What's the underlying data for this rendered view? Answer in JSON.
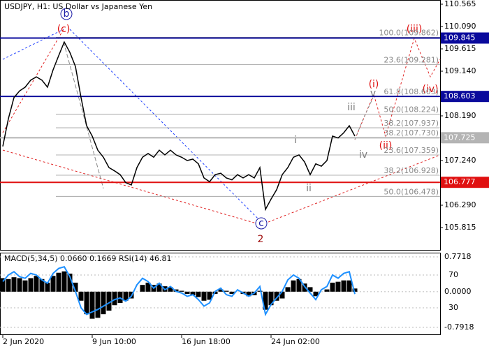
{
  "chart_data": [
    {
      "type": "line",
      "title": "USDJPY, H1:  US Dollar vs Japanese Yen",
      "color": "#000000",
      "categories": [
        "2 Jun 2020",
        null,
        null,
        null,
        null,
        null,
        null,
        null,
        null,
        null,
        null,
        null,
        null,
        null,
        null,
        null,
        "9 Jun 10:00",
        null,
        null,
        null,
        null,
        null,
        null,
        null,
        null,
        null,
        null,
        null,
        null,
        null,
        null,
        null,
        "16 Jun 18:00",
        null,
        null,
        null,
        null,
        null,
        null,
        null,
        null,
        null,
        null,
        null,
        null,
        null,
        null,
        null,
        "24 Jun 02:00",
        null,
        null,
        null,
        null,
        null,
        null,
        null,
        null,
        null,
        null,
        null,
        null,
        null,
        null,
        null
      ],
      "values": [
        107.54,
        108.13,
        108.58,
        108.72,
        108.8,
        108.95,
        109.02,
        108.95,
        108.8,
        109.17,
        109.47,
        109.76,
        109.54,
        109.24,
        108.58,
        107.98,
        107.76,
        107.46,
        107.31,
        107.09,
        107.02,
        106.94,
        106.77,
        106.72,
        107.09,
        107.31,
        107.39,
        107.31,
        107.46,
        107.36,
        107.46,
        107.36,
        107.31,
        107.24,
        107.27,
        107.17,
        106.87,
        106.79,
        106.94,
        106.97,
        106.87,
        106.83,
        106.94,
        106.87,
        106.94,
        106.87,
        107.09,
        106.2,
        106.42,
        106.62,
        106.94,
        107.09,
        107.31,
        107.36,
        107.21,
        106.94,
        107.17,
        107.12,
        107.24,
        107.76,
        107.72,
        107.83,
        107.98,
        107.76
      ],
      "ylim": [
        105.34,
        110.654
      ],
      "yticks": [
        {
          "value": 110.565,
          "label": "110.565"
        },
        {
          "value": 110.09,
          "label": "110.090"
        },
        {
          "value": 109.615,
          "label": "109.615"
        },
        {
          "value": 109.14,
          "label": "109.140"
        },
        {
          "value": 108.19,
          "label": "108.190"
        },
        {
          "value": 107.24,
          "label": "107.240"
        },
        {
          "value": 106.29,
          "label": "106.290"
        },
        {
          "value": 105.815,
          "label": "105.815"
        }
      ],
      "levels": [
        {
          "value": 109.845,
          "color": "#0a0a9c"
        },
        {
          "value": 108.603,
          "color": "#0a0a9c"
        },
        {
          "value": 107.725,
          "color": "#b4b4b4"
        },
        {
          "value": 106.777,
          "color": "#e01010"
        }
      ],
      "fib_levels": [
        {
          "label": "100.0(109.862)",
          "value": 109.862
        },
        {
          "label": "23.6(109.281)",
          "value": 109.281
        },
        {
          "label": "61.8(108.603)",
          "value": 108.603
        },
        {
          "label": "50.0(108.224)",
          "value": 108.224
        },
        {
          "label": "38.2(107.937)",
          "value": 107.937
        },
        {
          "label": "38.2(107.730)",
          "value": 107.73
        },
        {
          "label": "23.6(107.359)",
          "value": 107.359
        },
        {
          "label": "38.2(106.928)",
          "value": 106.928
        },
        {
          "label": "50.0(106.478)",
          "value": 106.478
        }
      ],
      "wave_labels": [
        "b",
        "(c)",
        "c",
        "2",
        "(i)",
        "(ii)",
        "(iii)",
        "(iv)",
        "i",
        "ii",
        "iii",
        "iv",
        "v"
      ]
    },
    {
      "type": "bar",
      "title": "MACD(5,34,5) 0.0660 0.1669 RSI(14) 46.81",
      "color": "#000000",
      "values": [
        0.3,
        0.28,
        0.32,
        0.3,
        0.25,
        0.3,
        0.35,
        0.28,
        0.2,
        0.35,
        0.42,
        0.45,
        0.4,
        0.2,
        -0.2,
        -0.5,
        -0.6,
        -0.58,
        -0.5,
        -0.42,
        -0.3,
        -0.25,
        -0.2,
        -0.15,
        0.0,
        0.15,
        0.2,
        0.15,
        0.18,
        0.12,
        0.1,
        0.05,
        0.02,
        -0.05,
        -0.08,
        -0.12,
        -0.2,
        -0.18,
        -0.05,
        0.05,
        0.02,
        -0.05,
        0.0,
        -0.05,
        -0.1,
        -0.08,
        0.02,
        -0.4,
        -0.3,
        -0.2,
        -0.15,
        0.1,
        0.25,
        0.28,
        0.18,
        0.1,
        -0.1,
        0.0,
        0.05,
        0.2,
        0.22,
        0.25,
        0.25,
        0.07
      ],
      "ylim": [
        -0.962,
        0.865
      ],
      "yticks": [
        {
          "value": 0.7718,
          "label": "0.7718"
        },
        {
          "value": 0,
          "label": "0.0000"
        },
        {
          "value": -0.7918,
          "label": "-0.7918"
        }
      ],
      "rsi": {
        "color": "#1e90ff",
        "axis": "y2",
        "values": [
          62,
          70,
          74,
          68,
          66,
          72,
          70,
          64,
          60,
          72,
          78,
          80,
          68,
          50,
          30,
          22,
          25,
          28,
          32,
          36,
          40,
          42,
          38,
          44,
          58,
          66,
          62,
          54,
          60,
          52,
          56,
          50,
          48,
          44,
          46,
          40,
          32,
          36,
          50,
          54,
          46,
          44,
          52,
          48,
          44,
          48,
          56,
          22,
          34,
          42,
          50,
          64,
          70,
          66,
          56,
          48,
          40,
          52,
          56,
          70,
          66,
          72,
          74,
          46.81
        ]
      },
      "y2lim": [
        -3.2,
        97.2
      ],
      "y2ticks": [
        70,
        30
      ]
    }
  ]
}
